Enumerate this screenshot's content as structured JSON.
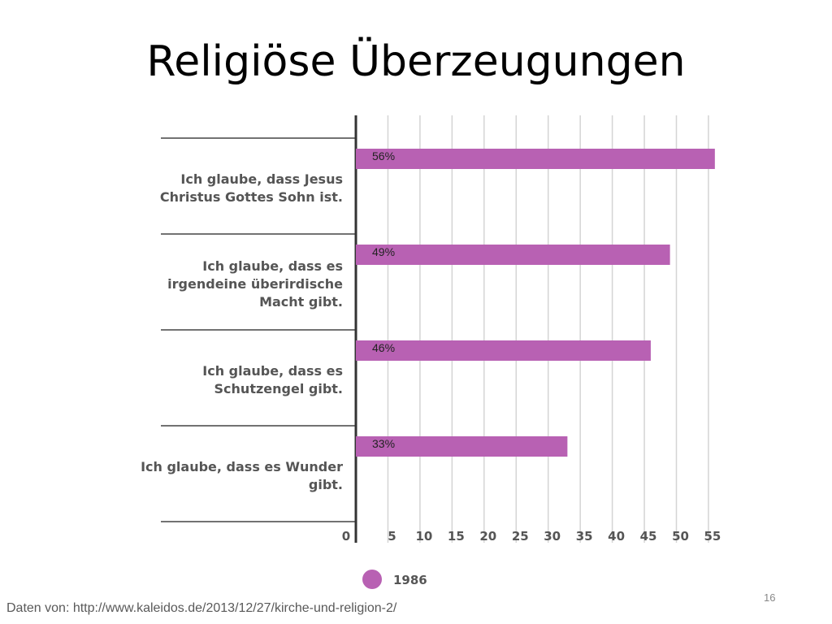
{
  "slide": {
    "title": "Religiöse Überzeugungen",
    "source": "Daten von: http://www.kaleidos.de/2013/12/27/kirche-und-religion-2/",
    "page_number": "16"
  },
  "colors": {
    "bar": "#b861b3",
    "grid": "#d4d4d4",
    "axis": "#333333",
    "separator": "#444444"
  },
  "chart_data": {
    "type": "bar",
    "orientation": "horizontal",
    "categories": [
      [
        "Ich glaube, dass Jesus",
        "Christus Gottes Sohn ist."
      ],
      [
        "Ich glaube, dass es",
        "irgendeine überirdische",
        "Macht gibt."
      ],
      [
        "Ich glaube, dass es",
        "Schutzengel gibt."
      ],
      [
        "Ich glaube, dass es Wunder",
        "gibt."
      ]
    ],
    "series": [
      {
        "name": "1986",
        "values": [
          56,
          49,
          46,
          33
        ],
        "labels": [
          "56%",
          "49%",
          "46%",
          "33%"
        ]
      }
    ],
    "xticks": [
      "0",
      "5",
      "10",
      "15",
      "20",
      "25",
      "30",
      "35",
      "40",
      "45",
      "50",
      "55"
    ],
    "xlim": [
      0,
      56
    ],
    "grid": true,
    "legend_position": "bottom"
  }
}
